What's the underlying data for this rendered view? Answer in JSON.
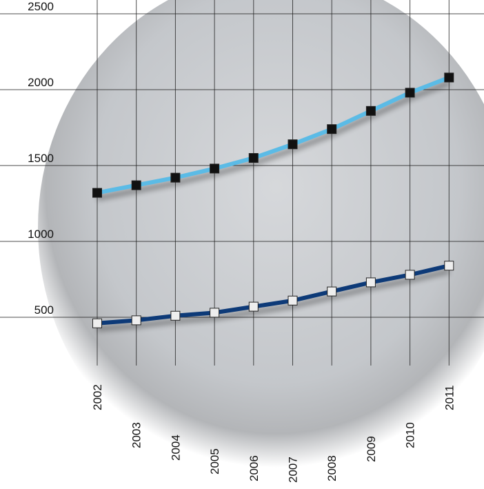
{
  "chart_data": {
    "type": "line",
    "categories": [
      "2002",
      "2003",
      "2004",
      "2005",
      "2006",
      "2007",
      "2008",
      "2009",
      "2010",
      "2011"
    ],
    "series": [
      {
        "color": "#5bbbe6",
        "marker_color": "#111111",
        "values": [
          1320,
          1370,
          1420,
          1480,
          1550,
          1640,
          1740,
          1860,
          1980,
          2080
        ]
      },
      {
        "color": "#0d3a78",
        "marker_color": "#eeeeee",
        "values": [
          460,
          480,
          510,
          530,
          570,
          610,
          670,
          730,
          780,
          840
        ]
      }
    ],
    "ylim": [
      250,
      2550
    ],
    "yticks": [
      500,
      1000,
      1500,
      2000,
      2500
    ],
    "grid": true
  }
}
